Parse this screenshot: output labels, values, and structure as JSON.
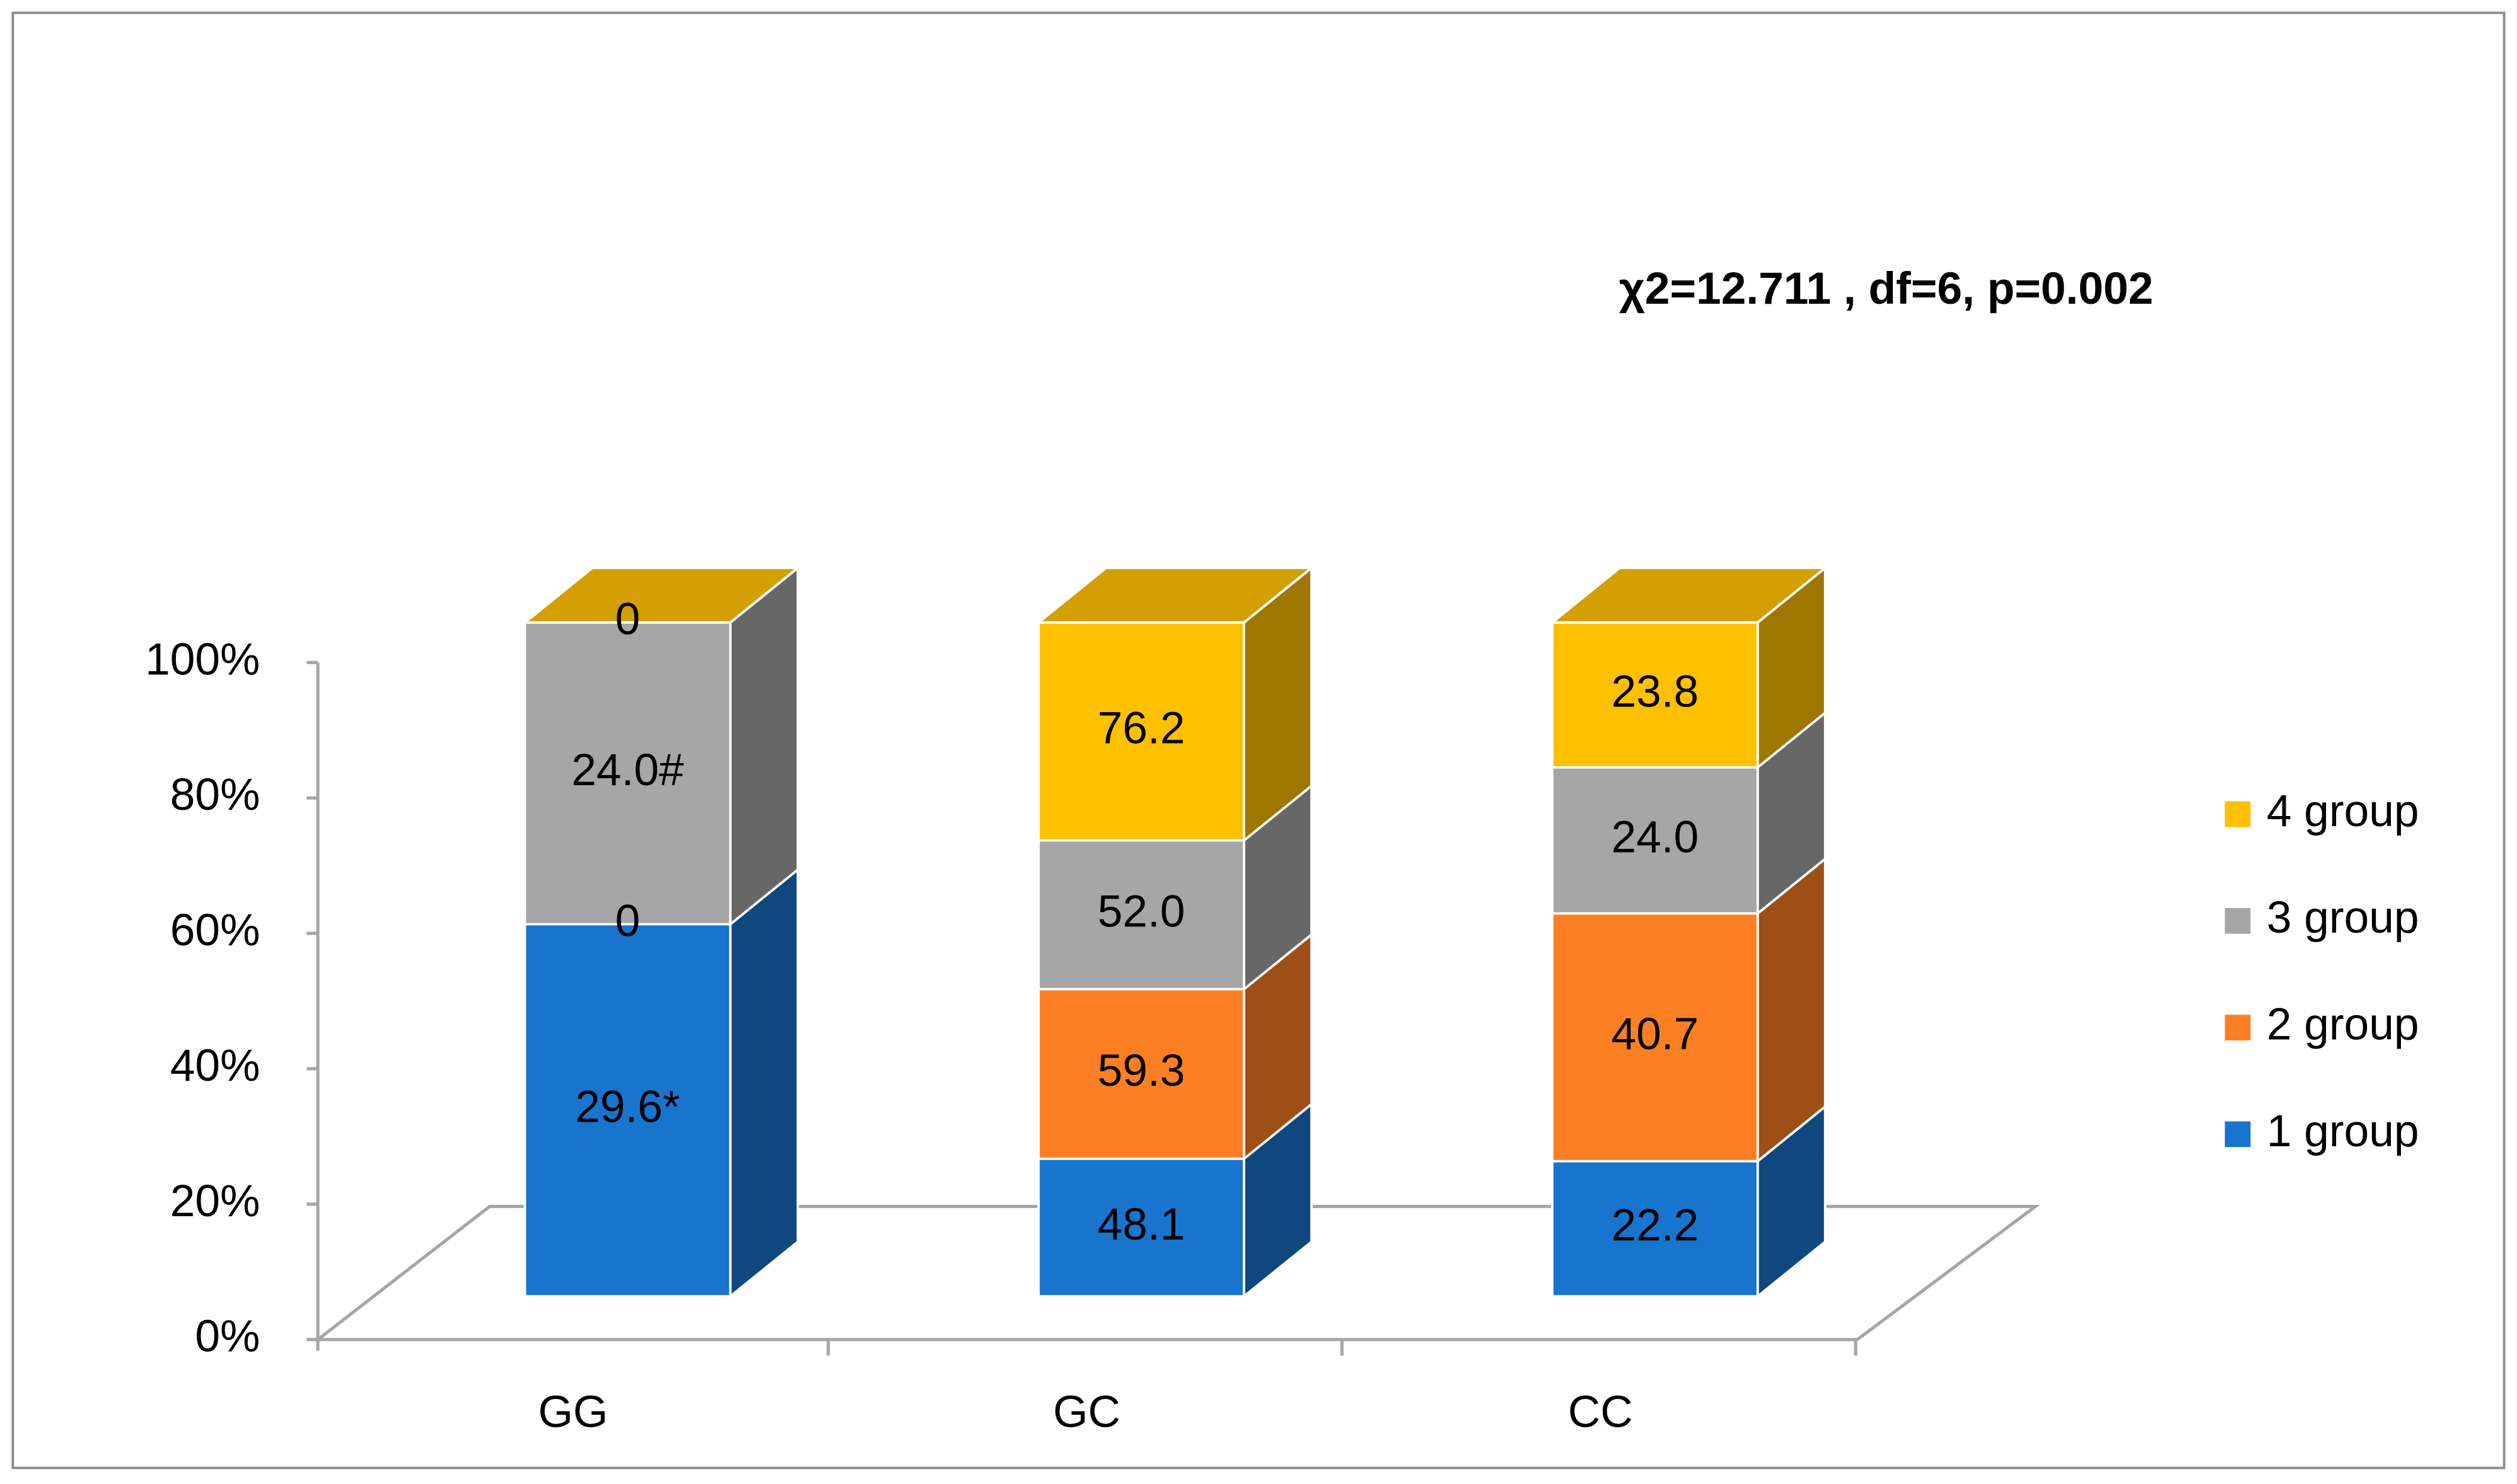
{
  "chart_data": {
    "type": "bar3d_stacked_percent",
    "annotation": "χ2=12.711 , df=6, p=0.002",
    "categories": [
      "GG",
      "GC",
      "CC"
    ],
    "series": [
      {
        "name": "1 group",
        "color": "#1874cd",
        "values": [
          29.6,
          48.1,
          22.2
        ],
        "value_labels": [
          "29.6*",
          "48.1",
          "22.2"
        ]
      },
      {
        "name": "2 group",
        "color": "#fd7f23",
        "values": [
          0,
          59.3,
          40.7
        ]
      },
      {
        "name": "3 group",
        "color": "#a6a6a6",
        "values": [
          24.0,
          52.0,
          24.0
        ],
        "value_labels": [
          "24.0#",
          "52.0",
          "24.0"
        ]
      },
      {
        "name": "4 group",
        "color": "#ffc000",
        "values": [
          0,
          76.2,
          23.8
        ]
      }
    ],
    "ylim": [
      0,
      100
    ],
    "yticks": [
      {
        "value": 0,
        "label": "0%"
      },
      {
        "value": 20,
        "label": "20%"
      },
      {
        "value": 40,
        "label": "40%"
      },
      {
        "value": 60,
        "label": "60%"
      },
      {
        "value": 80,
        "label": "80%"
      },
      {
        "value": 100,
        "label": "100%"
      }
    ],
    "legend": "right"
  }
}
